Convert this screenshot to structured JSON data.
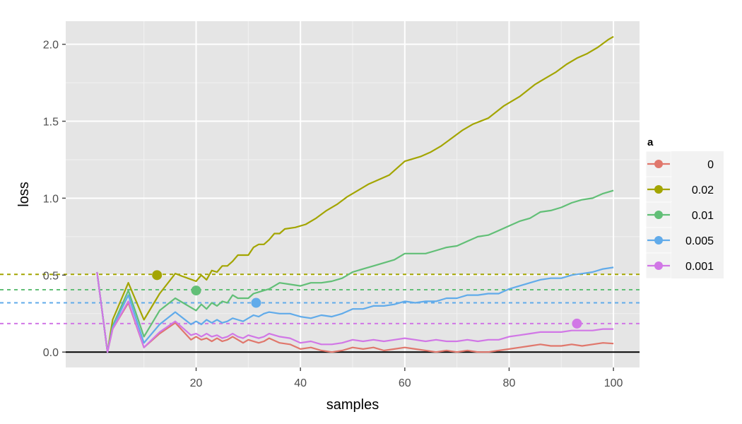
{
  "chart_data": {
    "type": "line",
    "xlabel": "samples",
    "ylabel": "loss",
    "xlim": [
      -5,
      105
    ],
    "ylim": [
      -0.1,
      2.15
    ],
    "x_ticks": [
      20,
      40,
      60,
      80,
      100
    ],
    "y_ticks": [
      0.0,
      0.5,
      1.0,
      1.5,
      2.0
    ],
    "x_tick_labels": [
      "20",
      "40",
      "60",
      "80",
      "100"
    ],
    "y_tick_labels": [
      "0.0",
      "0.5",
      "1.0",
      "1.5",
      "2.0"
    ],
    "x_minor_ticks": [
      10,
      30,
      50,
      70,
      90
    ],
    "y_minor_ticks": [
      0.25,
      0.75,
      1.25,
      1.75
    ],
    "grid": true,
    "reference_line_y": 0,
    "legend": {
      "title": "a",
      "placement": "right",
      "entries": [
        "0",
        "0.02",
        "0.01",
        "0.005",
        "0.001"
      ]
    },
    "series": [
      {
        "name": "0",
        "color": "#E0776C",
        "hline": null,
        "marker": null,
        "points": [
          [
            1,
            0.52
          ],
          [
            3,
            0.0
          ],
          [
            4,
            0.15
          ],
          [
            7,
            0.32
          ],
          [
            10,
            0.03
          ],
          [
            13,
            0.12
          ],
          [
            16,
            0.19
          ],
          [
            19,
            0.08
          ],
          [
            20,
            0.1
          ],
          [
            21,
            0.08
          ],
          [
            22,
            0.09
          ],
          [
            23,
            0.07
          ],
          [
            24,
            0.09
          ],
          [
            25,
            0.07
          ],
          [
            26,
            0.08
          ],
          [
            27,
            0.1
          ],
          [
            28,
            0.08
          ],
          [
            29,
            0.06
          ],
          [
            30,
            0.08
          ],
          [
            32,
            0.06
          ],
          [
            33,
            0.07
          ],
          [
            34,
            0.09
          ],
          [
            36,
            0.06
          ],
          [
            38,
            0.05
          ],
          [
            40,
            0.02
          ],
          [
            42,
            0.03
          ],
          [
            44,
            0.01
          ],
          [
            46,
            0.0
          ],
          [
            48,
            0.01
          ],
          [
            50,
            0.03
          ],
          [
            52,
            0.02
          ],
          [
            54,
            0.03
          ],
          [
            56,
            0.01
          ],
          [
            58,
            0.02
          ],
          [
            60,
            0.03
          ],
          [
            62,
            0.02
          ],
          [
            64,
            0.01
          ],
          [
            66,
            0.0
          ],
          [
            68,
            0.01
          ],
          [
            70,
            0.0
          ],
          [
            72,
            0.01
          ],
          [
            74,
            0.0
          ],
          [
            76,
            0.0
          ],
          [
            78,
            0.01
          ],
          [
            80,
            0.02
          ],
          [
            82,
            0.03
          ],
          [
            84,
            0.04
          ],
          [
            86,
            0.05
          ],
          [
            88,
            0.04
          ],
          [
            90,
            0.04
          ],
          [
            92,
            0.05
          ],
          [
            94,
            0.04
          ],
          [
            96,
            0.05
          ],
          [
            98,
            0.06
          ],
          [
            100,
            0.055
          ]
        ]
      },
      {
        "name": "0.02",
        "color": "#A3A500",
        "hline": 0.505,
        "marker": [
          12.5,
          0.5
        ],
        "points": [
          [
            1,
            0.52
          ],
          [
            3,
            0.0
          ],
          [
            4,
            0.21
          ],
          [
            7,
            0.45
          ],
          [
            10,
            0.21
          ],
          [
            13,
            0.38
          ],
          [
            16,
            0.51
          ],
          [
            20,
            0.46
          ],
          [
            21,
            0.5
          ],
          [
            22,
            0.47
          ],
          [
            23,
            0.53
          ],
          [
            24,
            0.52
          ],
          [
            25,
            0.56
          ],
          [
            26,
            0.56
          ],
          [
            27,
            0.59
          ],
          [
            28,
            0.63
          ],
          [
            30,
            0.63
          ],
          [
            31,
            0.68
          ],
          [
            32,
            0.7
          ],
          [
            33,
            0.7
          ],
          [
            34,
            0.73
          ],
          [
            35,
            0.77
          ],
          [
            36,
            0.77
          ],
          [
            37,
            0.8
          ],
          [
            39,
            0.81
          ],
          [
            41,
            0.83
          ],
          [
            43,
            0.87
          ],
          [
            45,
            0.92
          ],
          [
            47,
            0.96
          ],
          [
            49,
            1.01
          ],
          [
            51,
            1.05
          ],
          [
            53,
            1.09
          ],
          [
            55,
            1.12
          ],
          [
            57,
            1.15
          ],
          [
            60,
            1.24
          ],
          [
            63,
            1.27
          ],
          [
            65,
            1.3
          ],
          [
            67,
            1.34
          ],
          [
            69,
            1.39
          ],
          [
            71,
            1.44
          ],
          [
            73,
            1.48
          ],
          [
            76,
            1.52
          ],
          [
            79,
            1.6
          ],
          [
            82,
            1.66
          ],
          [
            85,
            1.74
          ],
          [
            87,
            1.78
          ],
          [
            89,
            1.82
          ],
          [
            91,
            1.87
          ],
          [
            93,
            1.91
          ],
          [
            95,
            1.94
          ],
          [
            97,
            1.98
          ],
          [
            99,
            2.03
          ],
          [
            100,
            2.05
          ]
        ]
      },
      {
        "name": "0.01",
        "color": "#62BF77",
        "hline": 0.405,
        "marker": [
          20,
          0.4
        ],
        "points": [
          [
            1,
            0.52
          ],
          [
            3,
            0.0
          ],
          [
            4,
            0.17
          ],
          [
            7,
            0.4
          ],
          [
            10,
            0.1
          ],
          [
            13,
            0.27
          ],
          [
            16,
            0.35
          ],
          [
            20,
            0.27
          ],
          [
            21,
            0.31
          ],
          [
            22,
            0.28
          ],
          [
            23,
            0.32
          ],
          [
            24,
            0.3
          ],
          [
            25,
            0.33
          ],
          [
            26,
            0.32
          ],
          [
            27,
            0.37
          ],
          [
            28,
            0.35
          ],
          [
            30,
            0.35
          ],
          [
            31,
            0.38
          ],
          [
            32,
            0.39
          ],
          [
            33,
            0.4
          ],
          [
            34,
            0.41
          ],
          [
            36,
            0.45
          ],
          [
            38,
            0.44
          ],
          [
            40,
            0.43
          ],
          [
            42,
            0.45
          ],
          [
            44,
            0.45
          ],
          [
            46,
            0.46
          ],
          [
            48,
            0.48
          ],
          [
            50,
            0.52
          ],
          [
            52,
            0.54
          ],
          [
            54,
            0.56
          ],
          [
            56,
            0.58
          ],
          [
            58,
            0.6
          ],
          [
            60,
            0.64
          ],
          [
            62,
            0.64
          ],
          [
            64,
            0.64
          ],
          [
            66,
            0.66
          ],
          [
            68,
            0.68
          ],
          [
            70,
            0.69
          ],
          [
            72,
            0.72
          ],
          [
            74,
            0.75
          ],
          [
            76,
            0.76
          ],
          [
            78,
            0.79
          ],
          [
            80,
            0.82
          ],
          [
            82,
            0.85
          ],
          [
            84,
            0.87
          ],
          [
            86,
            0.91
          ],
          [
            88,
            0.92
          ],
          [
            90,
            0.94
          ],
          [
            92,
            0.97
          ],
          [
            94,
            0.99
          ],
          [
            96,
            1.0
          ],
          [
            98,
            1.03
          ],
          [
            100,
            1.05
          ]
        ]
      },
      {
        "name": "0.005",
        "color": "#61ABEA",
        "hline": 0.32,
        "marker": [
          31.5,
          0.32
        ],
        "points": [
          [
            1,
            0.52
          ],
          [
            3,
            0.0
          ],
          [
            4,
            0.16
          ],
          [
            7,
            0.37
          ],
          [
            10,
            0.06
          ],
          [
            13,
            0.18
          ],
          [
            16,
            0.26
          ],
          [
            19,
            0.18
          ],
          [
            20,
            0.2
          ],
          [
            21,
            0.18
          ],
          [
            22,
            0.21
          ],
          [
            23,
            0.19
          ],
          [
            24,
            0.21
          ],
          [
            25,
            0.19
          ],
          [
            26,
            0.2
          ],
          [
            27,
            0.22
          ],
          [
            28,
            0.21
          ],
          [
            29,
            0.2
          ],
          [
            30,
            0.22
          ],
          [
            31,
            0.24
          ],
          [
            32,
            0.23
          ],
          [
            33,
            0.25
          ],
          [
            34,
            0.26
          ],
          [
            36,
            0.25
          ],
          [
            38,
            0.25
          ],
          [
            40,
            0.23
          ],
          [
            42,
            0.22
          ],
          [
            44,
            0.24
          ],
          [
            46,
            0.23
          ],
          [
            48,
            0.25
          ],
          [
            50,
            0.28
          ],
          [
            52,
            0.28
          ],
          [
            54,
            0.3
          ],
          [
            56,
            0.3
          ],
          [
            58,
            0.31
          ],
          [
            60,
            0.33
          ],
          [
            62,
            0.32
          ],
          [
            64,
            0.33
          ],
          [
            66,
            0.33
          ],
          [
            68,
            0.35
          ],
          [
            70,
            0.35
          ],
          [
            72,
            0.37
          ],
          [
            74,
            0.37
          ],
          [
            76,
            0.38
          ],
          [
            78,
            0.38
          ],
          [
            80,
            0.41
          ],
          [
            82,
            0.43
          ],
          [
            84,
            0.45
          ],
          [
            86,
            0.47
          ],
          [
            88,
            0.48
          ],
          [
            90,
            0.48
          ],
          [
            92,
            0.5
          ],
          [
            94,
            0.51
          ],
          [
            96,
            0.52
          ],
          [
            98,
            0.54
          ],
          [
            100,
            0.55
          ]
        ]
      },
      {
        "name": "0.001",
        "color": "#D177E6",
        "hline": 0.185,
        "marker": [
          93,
          0.185
        ],
        "points": [
          [
            1,
            0.52
          ],
          [
            3,
            0.0
          ],
          [
            4,
            0.15
          ],
          [
            7,
            0.33
          ],
          [
            10,
            0.03
          ],
          [
            13,
            0.13
          ],
          [
            16,
            0.2
          ],
          [
            19,
            0.11
          ],
          [
            20,
            0.12
          ],
          [
            21,
            0.1
          ],
          [
            22,
            0.12
          ],
          [
            23,
            0.1
          ],
          [
            24,
            0.11
          ],
          [
            25,
            0.09
          ],
          [
            26,
            0.1
          ],
          [
            27,
            0.12
          ],
          [
            28,
            0.1
          ],
          [
            29,
            0.09
          ],
          [
            30,
            0.11
          ],
          [
            32,
            0.09
          ],
          [
            33,
            0.1
          ],
          [
            34,
            0.12
          ],
          [
            36,
            0.1
          ],
          [
            38,
            0.09
          ],
          [
            40,
            0.06
          ],
          [
            42,
            0.07
          ],
          [
            44,
            0.05
          ],
          [
            46,
            0.05
          ],
          [
            48,
            0.06
          ],
          [
            50,
            0.08
          ],
          [
            52,
            0.07
          ],
          [
            54,
            0.08
          ],
          [
            56,
            0.07
          ],
          [
            58,
            0.08
          ],
          [
            60,
            0.09
          ],
          [
            62,
            0.08
          ],
          [
            64,
            0.07
          ],
          [
            66,
            0.08
          ],
          [
            68,
            0.07
          ],
          [
            70,
            0.07
          ],
          [
            72,
            0.08
          ],
          [
            74,
            0.07
          ],
          [
            76,
            0.08
          ],
          [
            78,
            0.08
          ],
          [
            80,
            0.1
          ],
          [
            82,
            0.11
          ],
          [
            84,
            0.12
          ],
          [
            86,
            0.13
          ],
          [
            88,
            0.13
          ],
          [
            90,
            0.13
          ],
          [
            92,
            0.14
          ],
          [
            94,
            0.14
          ],
          [
            96,
            0.14
          ],
          [
            98,
            0.15
          ],
          [
            100,
            0.15
          ]
        ]
      }
    ]
  }
}
